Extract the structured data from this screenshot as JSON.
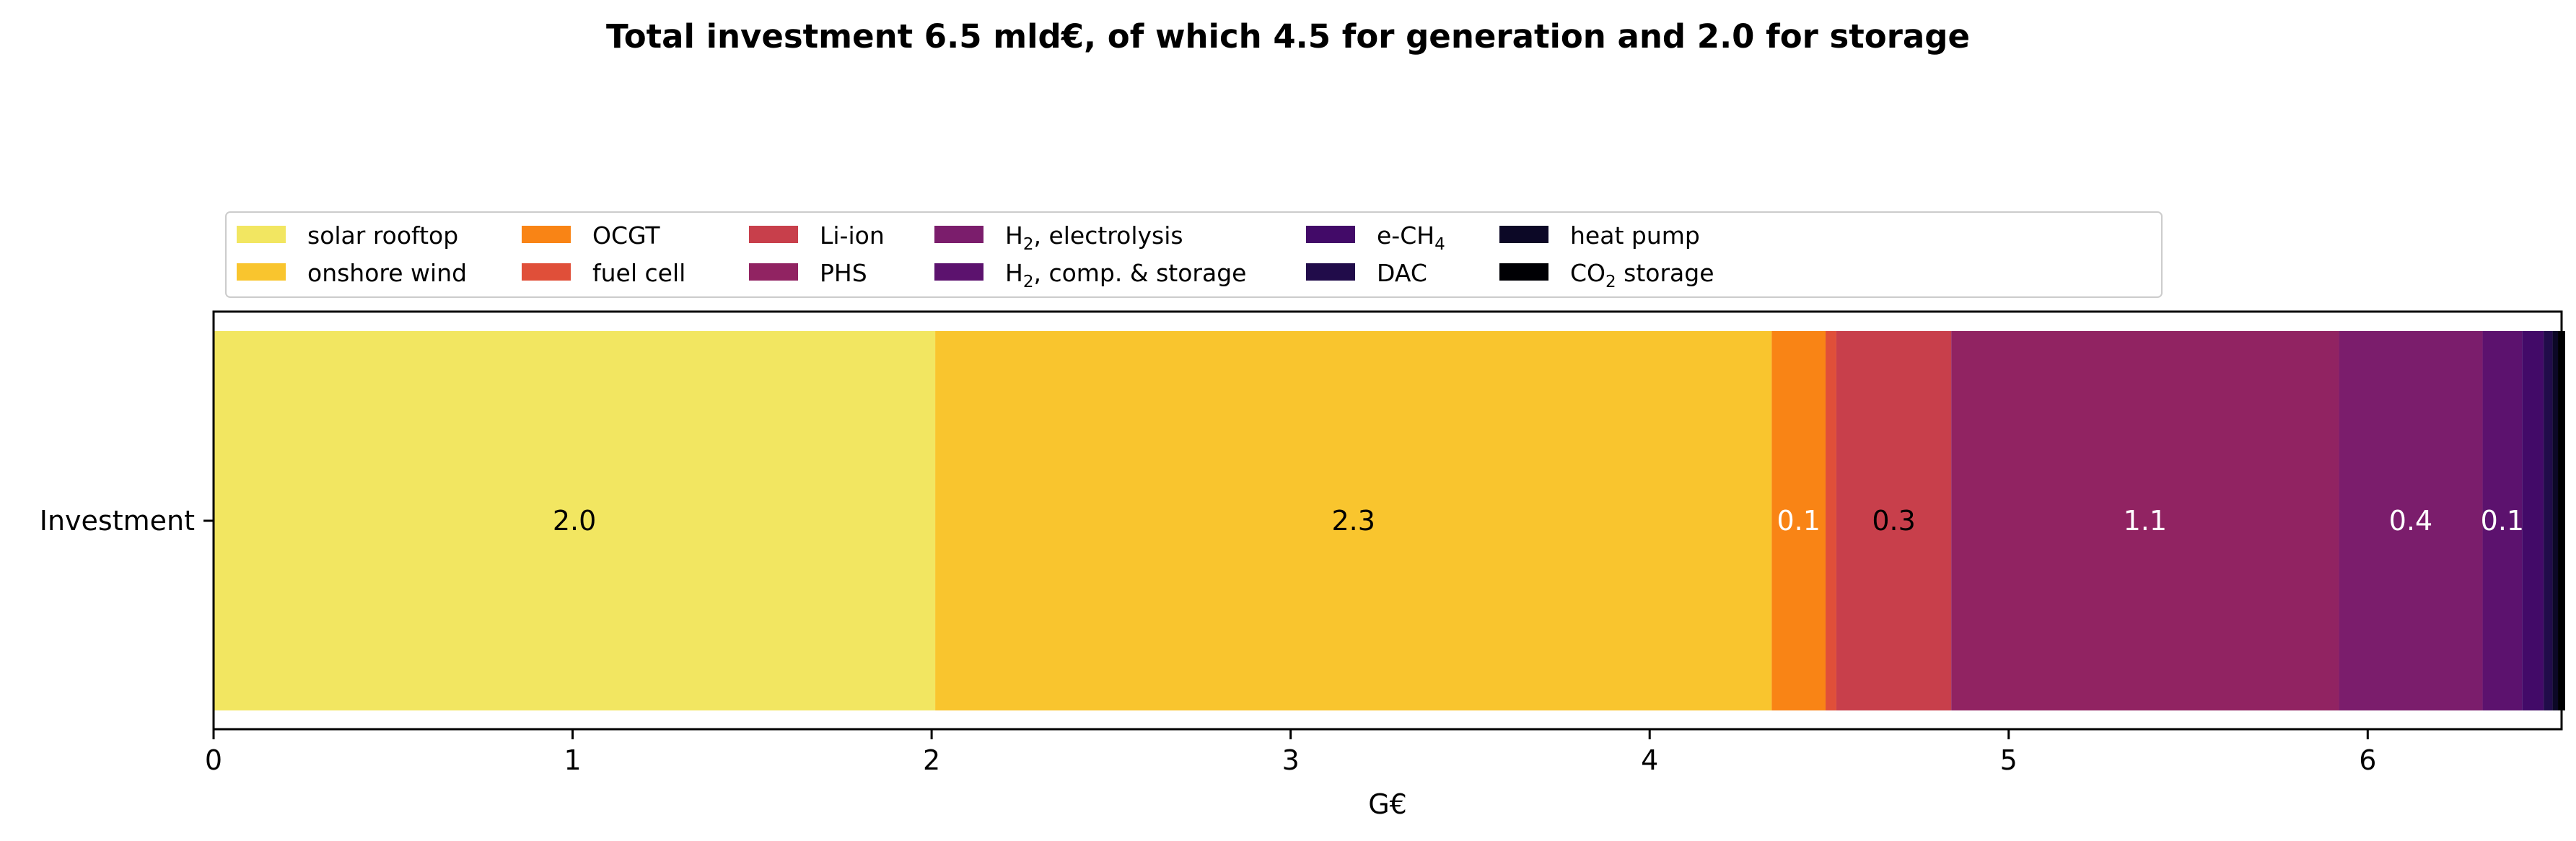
{
  "chart_data": {
    "type": "bar",
    "orientation": "horizontal",
    "stacked": true,
    "title": "Total investment 6.5 mld€, of which 4.5 for generation and 2.0 for storage",
    "xlabel": "G€",
    "ylabel": "",
    "categories": [
      "Investment"
    ],
    "xlim": [
      0,
      6.54
    ],
    "xticks": [
      0,
      1,
      2,
      3,
      4,
      5,
      6
    ],
    "grid": false,
    "legend_placement": "top, above plot, 8 columns",
    "series": [
      {
        "name": "solar rooftop",
        "value": 2.01,
        "color": "#f2e661",
        "label": "2.0",
        "label_color": "#000000"
      },
      {
        "name": "onshore wind",
        "value": 2.33,
        "color": "#f9c52e",
        "label": "2.3",
        "label_color": "#000000"
      },
      {
        "name": "OCGT",
        "value": 0.15,
        "color": "#f98415",
        "label": "0.1",
        "label_color": "#ffffff"
      },
      {
        "name": "fuel cell",
        "value": 0.03,
        "color": "#e04f39",
        "label": "",
        "label_color": "#ffffff"
      },
      {
        "name": "Li-ion",
        "value": 0.32,
        "color": "#c83f4b",
        "label": "0.3",
        "label_color": "#000000"
      },
      {
        "name": "PHS",
        "value": 1.08,
        "color": "#912362",
        "label": "1.1",
        "label_color": "#ffffff"
      },
      {
        "name": "H",
        "sub": "2",
        "suffix": ", electrolysis",
        "value": 0.4,
        "color": "#7b1d6c",
        "label": "0.4",
        "label_color": "#ffffff"
      },
      {
        "name": "H",
        "sub": "2",
        "suffix": ", comp. & storage",
        "value": 0.11,
        "color": "#5c126e",
        "label": "0.1",
        "label_color": "#ffffff"
      },
      {
        "name": "e-CH",
        "sub": "4",
        "suffix": "",
        "value": 0.06,
        "color": "#420a68",
        "label": "",
        "label_color": "#ffffff"
      },
      {
        "name": "DAC",
        "value": 0.025,
        "color": "#210c4a",
        "label": "",
        "label_color": "#ffffff"
      },
      {
        "name": "heat pump",
        "value": 0.015,
        "color": "#0c0826",
        "label": "",
        "label_color": "#ffffff"
      },
      {
        "name": "CO",
        "sub": "2",
        "suffix": " storage",
        "value": 0.02,
        "color": "#000004",
        "label": "",
        "label_color": "#ffffff"
      }
    ]
  }
}
